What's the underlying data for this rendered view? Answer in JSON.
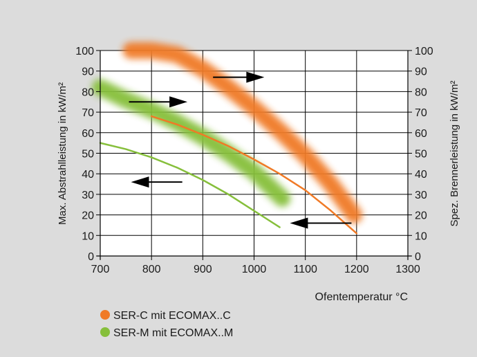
{
  "chart_data": {
    "type": "line",
    "xlabel": "Ofentemperatur °C",
    "ylabel_left": "Max. Abstrahlleistung in kW/m²",
    "ylabel_right": "Spez. Brennerleistung in kW/m²",
    "xlim": [
      700,
      1300
    ],
    "ylim": [
      0,
      100
    ],
    "x_ticks": [
      700,
      800,
      900,
      1000,
      1100,
      1200,
      1300
    ],
    "y_ticks": [
      0,
      10,
      20,
      30,
      40,
      50,
      60,
      70,
      80,
      90,
      100
    ],
    "grid": true,
    "colors": {
      "orange": "#f07a26",
      "green": "#86bf3b",
      "arrow": "#000000"
    },
    "series": [
      {
        "name": "SER-C mit ECOMAX..C",
        "color": "#f07a26",
        "axis": "left",
        "style": "line",
        "x": [
          800,
          850,
          900,
          950,
          1000,
          1050,
          1100,
          1150,
          1200
        ],
        "y": [
          68,
          64,
          59,
          53.5,
          47,
          40,
          32,
          22,
          11
        ]
      },
      {
        "name": "SER-M mit ECOMAX..M",
        "color": "#86bf3b",
        "axis": "left",
        "style": "line",
        "x": [
          700,
          750,
          800,
          850,
          900,
          950,
          1000,
          1050
        ],
        "y": [
          55,
          52,
          48,
          43,
          37,
          30,
          22,
          14
        ]
      },
      {
        "name": "SER-C mit ECOMAX..C",
        "color": "#f07a26",
        "axis": "right",
        "style": "band",
        "x": [
          760,
          800,
          850,
          900,
          950,
          1000,
          1050,
          1100,
          1150,
          1195
        ],
        "y": [
          100,
          100,
          98,
          91,
          82,
          72,
          61,
          49,
          35,
          20
        ]
      },
      {
        "name": "SER-M mit ECOMAX..M",
        "color": "#86bf3b",
        "axis": "right",
        "style": "band",
        "x": [
          700,
          750,
          800,
          850,
          900,
          950,
          1000,
          1055
        ],
        "y": [
          82,
          76,
          71,
          65,
          58,
          50,
          41,
          28
        ]
      }
    ],
    "arrows": [
      {
        "direction": "right",
        "x": [
          920,
          1020
        ],
        "y": 87
      },
      {
        "direction": "right",
        "x": [
          756,
          870
        ],
        "y": 75
      },
      {
        "direction": "left",
        "x": [
          760,
          860
        ],
        "y": 36
      },
      {
        "direction": "left",
        "x": [
          1070,
          1190
        ],
        "y": 16
      }
    ],
    "legend": {
      "placement": "bottom-left",
      "entries": [
        {
          "label": "SER-C mit ECOMAX..C",
          "color": "#f07a26"
        },
        {
          "label": "SER-M mit ECOMAX..M",
          "color": "#86bf3b"
        }
      ]
    }
  }
}
